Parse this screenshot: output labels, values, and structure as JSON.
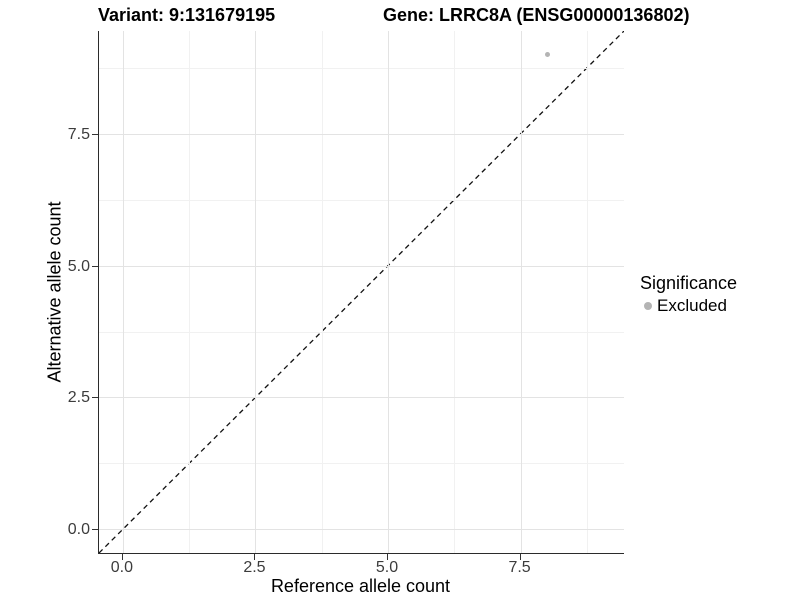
{
  "header": {
    "variant_title": "Variant: 9:131679195",
    "gene_title": "Gene: LRRC8A (ENSG00000136802)"
  },
  "legend": {
    "title": "Significance",
    "items": [
      {
        "label": "Excluded",
        "color": "#b4b4b4"
      }
    ]
  },
  "chart_data": {
    "type": "scatter",
    "title": "Variant: 9:131679195 — Gene: LRRC8A (ENSG00000136802)",
    "xlabel": "Reference allele count",
    "ylabel": "Alternative allele count",
    "xlim": [
      -0.45,
      9.45
    ],
    "ylim": [
      -0.45,
      9.45
    ],
    "x_ticks": {
      "values": [
        0,
        2.5,
        5,
        7.5
      ],
      "labels": [
        "0.0",
        "2.5",
        "5.0",
        "7.5"
      ]
    },
    "y_ticks": {
      "values": [
        0,
        2.5,
        5,
        7.5
      ],
      "labels": [
        "0.0",
        "2.5",
        "5.0",
        "7.5"
      ]
    },
    "minor_ticks": [
      1.25,
      3.75,
      6.25,
      8.75
    ],
    "grid": "major+minor",
    "legend_position": "right",
    "series": [
      {
        "name": "Excluded",
        "color": "#b4b4b4",
        "points": [
          {
            "x": 8,
            "y": 9
          }
        ]
      }
    ],
    "reference_line": {
      "equation": "y = x",
      "style": "dashed",
      "color": "#111111"
    }
  },
  "colors": {
    "background": "#ffffff",
    "axis_line": "#2b2b2b",
    "tick_text": "#3c3c3c",
    "major_grid": "#e3e3e3",
    "minor_grid": "#f1f1f1",
    "point": "#b4b4b4"
  }
}
